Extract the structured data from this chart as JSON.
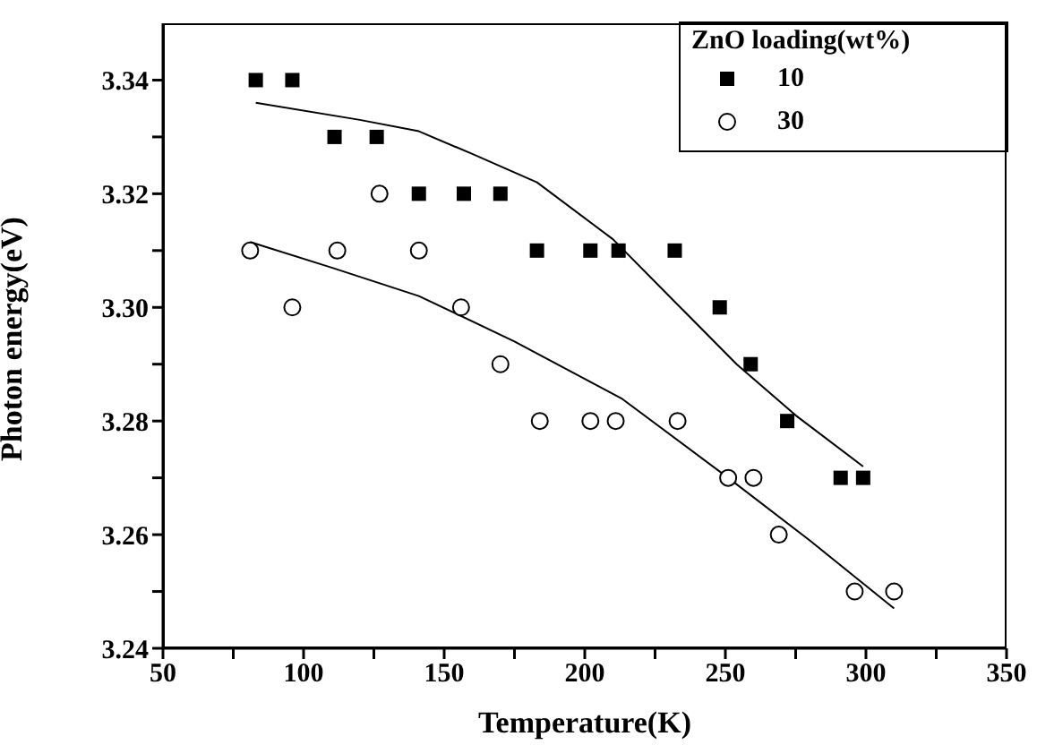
{
  "chart_data": {
    "type": "scatter",
    "xlabel": "Temperature(K)",
    "ylabel": "Photon energy(eV)",
    "legend_title": "ZnO loading(wt%)",
    "legend": "top right",
    "grid": false,
    "xlim": [
      50,
      350
    ],
    "xticks": [
      50,
      {
        "value": 75,
        "label": null
      },
      100,
      {
        "value": 125,
        "label": null
      },
      150,
      {
        "value": 175,
        "label": null
      },
      200,
      {
        "value": 225,
        "label": null
      },
      250,
      {
        "value": 275,
        "label": null
      },
      300,
      {
        "value": 325,
        "label": null
      },
      350
    ],
    "ylim": [
      3.24,
      3.35
    ],
    "yticks": [
      {
        "value": 3.24,
        "label": "3.24"
      },
      {
        "value": 3.25,
        "label": null
      },
      {
        "value": 3.26,
        "label": "3.26"
      },
      {
        "value": 3.27,
        "label": null
      },
      {
        "value": 3.28,
        "label": "3.28"
      },
      {
        "value": 3.29,
        "label": null
      },
      {
        "value": 3.3,
        "label": "3.30"
      },
      {
        "value": 3.31,
        "label": null
      },
      {
        "value": 3.32,
        "label": "3.32"
      },
      {
        "value": 3.33,
        "label": null
      },
      {
        "value": 3.34,
        "label": "3.34"
      }
    ],
    "series": [
      {
        "name": "10",
        "marker": "square",
        "color": "#000000",
        "x": [
          83,
          96,
          111,
          126,
          141,
          157,
          170,
          183,
          202,
          212,
          232,
          248,
          259,
          272,
          291,
          299
        ],
        "values": [
          3.34,
          3.34,
          3.33,
          3.33,
          3.32,
          3.32,
          3.32,
          3.31,
          3.31,
          3.31,
          3.31,
          3.3,
          3.29,
          3.28,
          3.27,
          3.27
        ]
      },
      {
        "name": "30",
        "marker": "circle",
        "color": "#000000",
        "x": [
          81,
          96,
          112,
          127,
          141,
          156,
          170,
          184,
          202,
          211,
          233,
          251,
          260,
          269,
          296,
          310
        ],
        "values": [
          3.31,
          3.3,
          3.31,
          3.32,
          3.31,
          3.3,
          3.29,
          3.28,
          3.28,
          3.28,
          3.28,
          3.27,
          3.27,
          3.26,
          3.25,
          3.25
        ]
      },
      {
        "type": "line",
        "marker": "none",
        "line_style": "solid",
        "color": "#000000",
        "x": [
          83,
          120,
          141,
          160,
          183,
          210,
          232,
          254,
          275,
          299
        ],
        "values": [
          3.336,
          3.333,
          3.331,
          3.327,
          3.322,
          3.312,
          3.301,
          3.29,
          3.281,
          3.272
        ]
      },
      {
        "type": "line",
        "marker": "none",
        "line_style": "solid",
        "color": "#000000",
        "x": [
          81,
          110,
          141,
          175,
          213,
          251,
          280,
          310
        ],
        "values": [
          3.3115,
          3.307,
          3.302,
          3.294,
          3.284,
          3.27,
          3.259,
          3.247
        ]
      }
    ]
  }
}
